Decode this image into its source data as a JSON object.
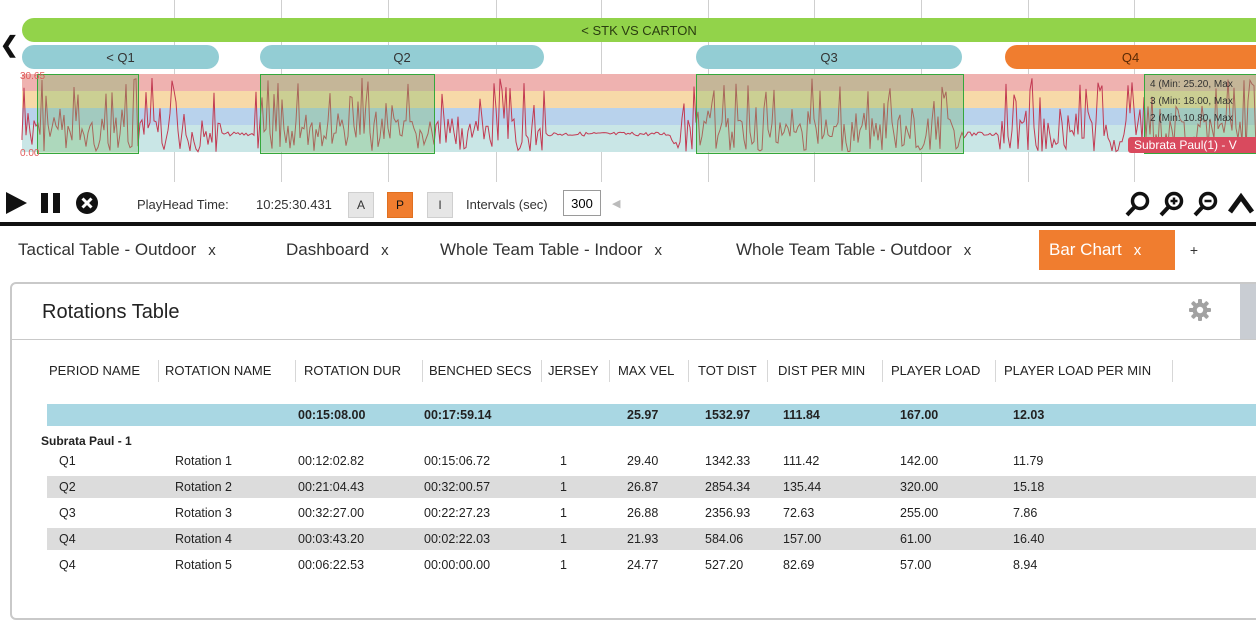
{
  "timeline": {
    "game_label": "< STK VS CARTON",
    "quarters": [
      "< Q1",
      "Q2",
      "Q3",
      "Q4"
    ],
    "y_max": "30.65",
    "y_min": "0.00",
    "zone_legend": [
      "4 (Min: 25.20, Max",
      "3 (Min: 18.00, Max",
      "2 (Min: 10.80, Max"
    ],
    "player_tag": "Subrata Paul(1) - V",
    "colors": {
      "game": "#92d34a",
      "quarter": "#93cdd4",
      "active_quarter": "#f07d2f",
      "trace": "#c23a52"
    }
  },
  "controls": {
    "playhead_label": "PlayHead Time:",
    "playhead_value": "10:25:30.431",
    "mode_buttons": [
      "A",
      "P",
      "I"
    ],
    "active_mode": "P",
    "intervals_label": "Intervals (sec)",
    "intervals_value": "300"
  },
  "tabs": [
    {
      "label": "Tactical Table - Outdoor",
      "close": "x"
    },
    {
      "label": "Dashboard",
      "close": "x"
    },
    {
      "label": "Whole Team Table - Indoor",
      "close": "x"
    },
    {
      "label": "Whole Team Table - Outdoor",
      "close": "x"
    },
    {
      "label": "Bar Chart",
      "close": "x"
    },
    {
      "label": "+",
      "close": ""
    }
  ],
  "panel": {
    "title": "Rotations Table",
    "columns": [
      "PERIOD NAME",
      "ROTATION NAME",
      "ROTATION DUR",
      "BENCHED SECS",
      "JERSEY",
      "MAX VEL",
      "TOT DIST",
      "DIST PER MIN",
      "PLAYER LOAD",
      "PLAYER LOAD PER MIN"
    ],
    "totals": [
      "",
      "",
      "00:15:08.00",
      "00:17:59.14",
      "",
      "25.97",
      "1532.97",
      "111.84",
      "167.00",
      "12.03"
    ],
    "group_label": "Subrata Paul - 1",
    "rows": [
      [
        "Q1",
        "Rotation 1",
        "00:12:02.82",
        "00:15:06.72",
        "1",
        "29.40",
        "1342.33",
        "111.42",
        "142.00",
        "11.79"
      ],
      [
        "Q2",
        "Rotation 2",
        "00:21:04.43",
        "00:32:00.57",
        "1",
        "26.87",
        "2854.34",
        "135.44",
        "320.00",
        "15.18"
      ],
      [
        "Q3",
        "Rotation 3",
        "00:32:27.00",
        "00:22:27.23",
        "1",
        "26.88",
        "2356.93",
        "72.63",
        "255.00",
        "7.86"
      ],
      [
        "Q4",
        "Rotation 4",
        "00:03:43.20",
        "00:02:22.03",
        "1",
        "21.93",
        "584.06",
        "157.00",
        "61.00",
        "16.40"
      ],
      [
        "Q4",
        "Rotation 5",
        "00:06:22.53",
        "00:00:00.00",
        "1",
        "24.77",
        "527.20",
        "82.69",
        "57.00",
        "8.94"
      ]
    ]
  }
}
